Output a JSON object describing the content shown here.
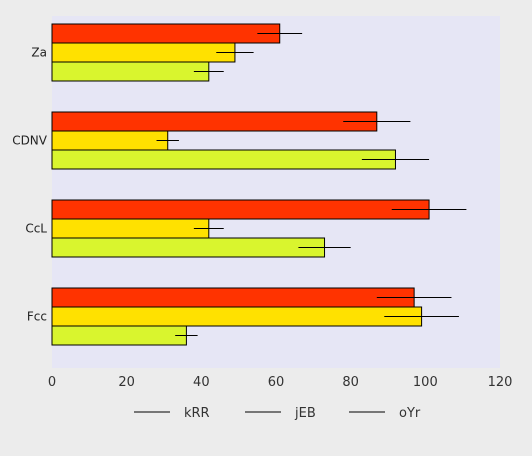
{
  "chart_data": {
    "type": "bar",
    "orientation": "horizontal",
    "categories": [
      "Za",
      "CDNV",
      "CcL",
      "Fcc"
    ],
    "series": [
      {
        "name": "kRR",
        "color": "#ff3300",
        "values": [
          61,
          87,
          101,
          97
        ],
        "errors": [
          6,
          9,
          10,
          10
        ]
      },
      {
        "name": "jEB",
        "color": "#ffe100",
        "values": [
          49,
          31,
          42,
          99
        ],
        "errors": [
          5,
          3,
          4,
          10
        ]
      },
      {
        "name": "oYr",
        "color": "#d9f52e",
        "values": [
          42,
          92,
          73,
          36
        ],
        "errors": [
          4,
          9,
          7,
          3
        ]
      }
    ],
    "xlim": [
      0,
      120
    ],
    "xticks": [
      0,
      20,
      40,
      60,
      80,
      100,
      120
    ],
    "title": "",
    "xlabel": "",
    "ylabel": "",
    "grid": false,
    "legend_position": "bottom",
    "plot_background": "#e6e6f5",
    "page_background": "#ececec"
  }
}
